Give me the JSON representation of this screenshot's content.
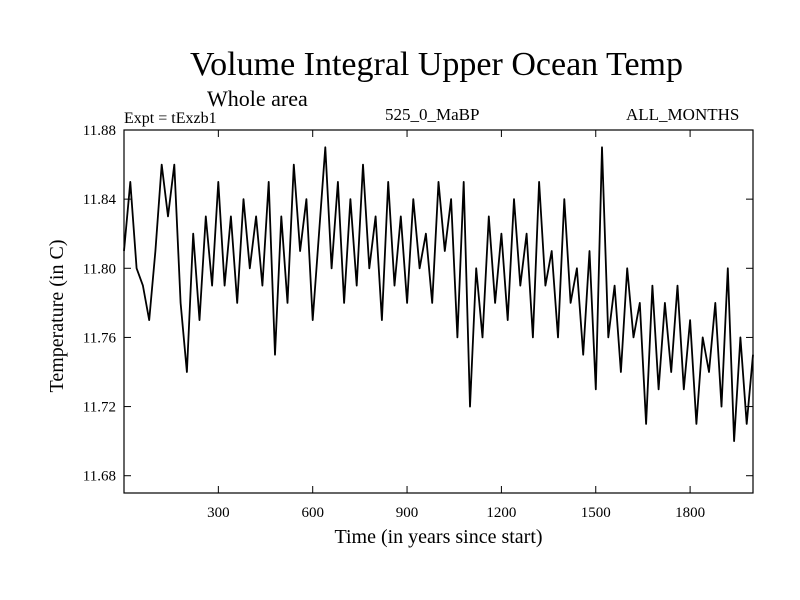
{
  "chart_data": {
    "type": "line",
    "title": "Volume Integral Upper Ocean Temp",
    "subtitle": "Whole area",
    "experiment": "Expt = tExzb1",
    "period_label": "525_0_MaBP",
    "months_label": "ALL_MONTHS",
    "xlabel": "Time (in years since start)",
    "ylabel": "Temperature (in C)",
    "xlim": [
      0,
      2000
    ],
    "ylim": [
      11.67,
      11.88
    ],
    "xticks": [
      300,
      600,
      900,
      1200,
      1500,
      1800
    ],
    "xtick_labels": [
      "300",
      "600",
      "900",
      "1200",
      "1500",
      "1800"
    ],
    "yticks": [
      11.68,
      11.72,
      11.76,
      11.8,
      11.84,
      11.88
    ],
    "ytick_labels": [
      "11.68",
      "11.72",
      "11.76",
      "11.80",
      "11.84",
      "11.88"
    ],
    "grid": false,
    "series": [
      {
        "name": "Volume integral upper ocean temperature",
        "x": [
          0,
          20,
          40,
          60,
          80,
          100,
          120,
          140,
          160,
          180,
          200,
          220,
          240,
          260,
          280,
          300,
          320,
          340,
          360,
          380,
          400,
          420,
          440,
          460,
          480,
          500,
          520,
          540,
          560,
          580,
          600,
          620,
          640,
          660,
          680,
          700,
          720,
          740,
          760,
          780,
          800,
          820,
          840,
          860,
          880,
          900,
          920,
          940,
          960,
          980,
          1000,
          1020,
          1040,
          1060,
          1080,
          1100,
          1120,
          1140,
          1160,
          1180,
          1200,
          1220,
          1240,
          1260,
          1280,
          1300,
          1320,
          1340,
          1360,
          1380,
          1400,
          1420,
          1440,
          1460,
          1480,
          1500,
          1520,
          1540,
          1560,
          1580,
          1600,
          1620,
          1640,
          1660,
          1680,
          1700,
          1720,
          1740,
          1760,
          1780,
          1800,
          1820,
          1840,
          1860,
          1880,
          1900,
          1920,
          1940,
          1960,
          1980,
          2000
        ],
        "y": [
          11.81,
          11.85,
          11.8,
          11.79,
          11.77,
          11.81,
          11.86,
          11.83,
          11.86,
          11.78,
          11.74,
          11.82,
          11.77,
          11.83,
          11.79,
          11.85,
          11.79,
          11.83,
          11.78,
          11.84,
          11.8,
          11.83,
          11.79,
          11.85,
          11.75,
          11.83,
          11.78,
          11.86,
          11.81,
          11.84,
          11.77,
          11.82,
          11.87,
          11.8,
          11.85,
          11.78,
          11.84,
          11.79,
          11.86,
          11.8,
          11.83,
          11.77,
          11.85,
          11.79,
          11.83,
          11.78,
          11.84,
          11.8,
          11.82,
          11.78,
          11.85,
          11.81,
          11.84,
          11.76,
          11.85,
          11.72,
          11.8,
          11.76,
          11.83,
          11.78,
          11.82,
          11.77,
          11.84,
          11.79,
          11.82,
          11.76,
          11.85,
          11.79,
          11.81,
          11.76,
          11.84,
          11.78,
          11.8,
          11.75,
          11.81,
          11.73,
          11.87,
          11.76,
          11.79,
          11.74,
          11.8,
          11.76,
          11.78,
          11.71,
          11.79,
          11.73,
          11.78,
          11.74,
          11.79,
          11.73,
          11.77,
          11.71,
          11.76,
          11.74,
          11.78,
          11.72,
          11.8,
          11.7,
          11.76,
          11.71,
          11.75
        ]
      }
    ]
  }
}
